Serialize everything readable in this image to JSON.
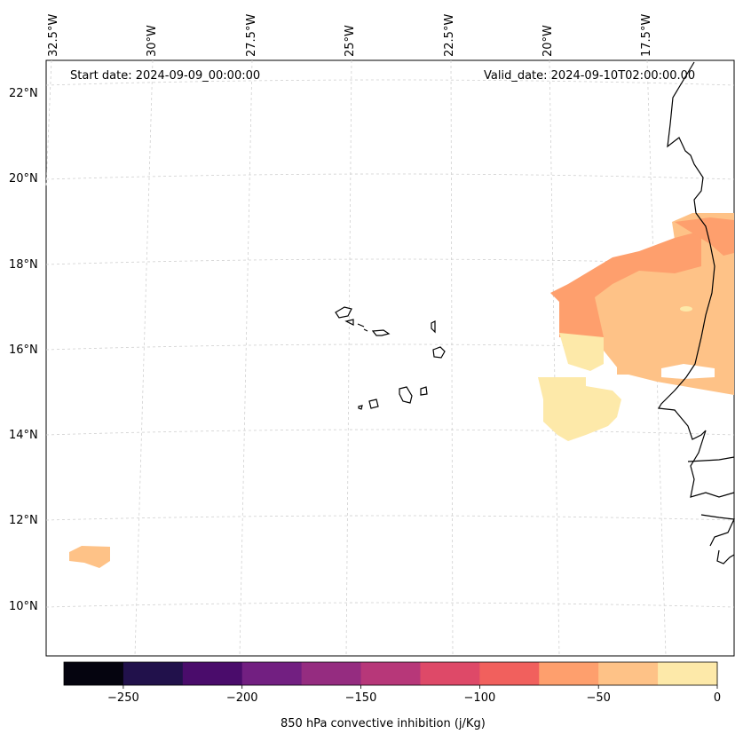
{
  "map": {
    "start_date": "Start date: 2024-09-09_00:00:00",
    "valid_date": "Valid_date: 2024-09-10T02:00:00.00",
    "lat_labels": [
      "22°N",
      "20°N",
      "18°N",
      "16°N",
      "14°N",
      "12°N",
      "10°N"
    ],
    "lon_labels": [
      "32.5°W",
      "30°W",
      "27.5°W",
      "25°W",
      "22.5°W",
      "20°W",
      "17.5°W"
    ]
  },
  "colorbar": {
    "label": "850 hPa convective inhibition (j/Kg)",
    "ticks": [
      "−250",
      "−200",
      "−150",
      "−100",
      "−50",
      "0"
    ],
    "colors": [
      "#05040f",
      "#21114b",
      "#4a0c6b",
      "#721f81",
      "#952c80",
      "#b73779",
      "#de4968",
      "#f1605d",
      "#fe9f6d",
      "#fec287",
      "#fde9a9"
    ]
  }
}
